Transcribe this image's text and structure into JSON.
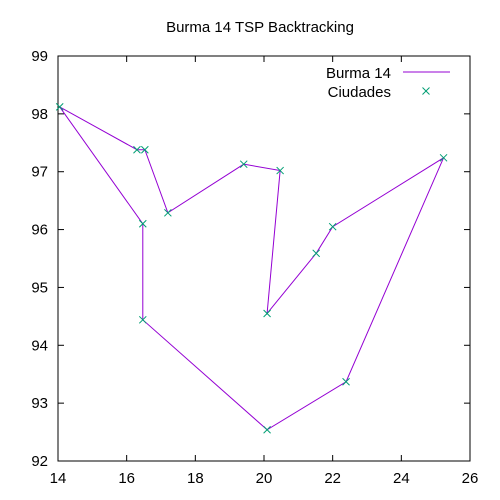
{
  "chart_data": {
    "type": "line",
    "title": "Burma 14 TSP Backtracking",
    "xlabel": "",
    "ylabel": "",
    "xlim": [
      14,
      26
    ],
    "ylim": [
      92,
      99
    ],
    "x_ticks": [
      "14",
      "16",
      "18",
      "20",
      "22",
      "24",
      "26"
    ],
    "y_ticks": [
      "92",
      "93",
      "94",
      "95",
      "96",
      "97",
      "98",
      "99"
    ],
    "grid": false,
    "legend_position": "top-right",
    "series": [
      {
        "name": "Burma 14",
        "style": "line",
        "color": "#9400d3",
        "points": [
          [
            14.05,
            98.12
          ],
          [
            16.47,
            96.1
          ],
          [
            16.47,
            94.44
          ],
          [
            20.09,
            92.54
          ],
          [
            22.39,
            93.37
          ],
          [
            25.23,
            97.24
          ],
          [
            22.0,
            96.05
          ],
          [
            21.52,
            95.59
          ],
          [
            20.09,
            94.55
          ],
          [
            20.47,
            97.02
          ],
          [
            19.41,
            97.13
          ],
          [
            17.2,
            96.29
          ],
          [
            16.53,
            97.38
          ],
          [
            16.3,
            97.38
          ],
          [
            14.05,
            98.12
          ]
        ]
      },
      {
        "name": "Ciudades",
        "style": "points",
        "color": "#009e73",
        "marker": "x",
        "points": [
          [
            16.47,
            96.1
          ],
          [
            16.47,
            94.44
          ],
          [
            20.09,
            92.54
          ],
          [
            22.39,
            93.37
          ],
          [
            25.23,
            97.24
          ],
          [
            22.0,
            96.05
          ],
          [
            20.47,
            97.02
          ],
          [
            17.2,
            96.29
          ],
          [
            16.3,
            97.38
          ],
          [
            14.05,
            98.12
          ],
          [
            16.53,
            97.38
          ],
          [
            21.52,
            95.59
          ],
          [
            19.41,
            97.13
          ],
          [
            20.09,
            94.55
          ]
        ]
      }
    ]
  }
}
